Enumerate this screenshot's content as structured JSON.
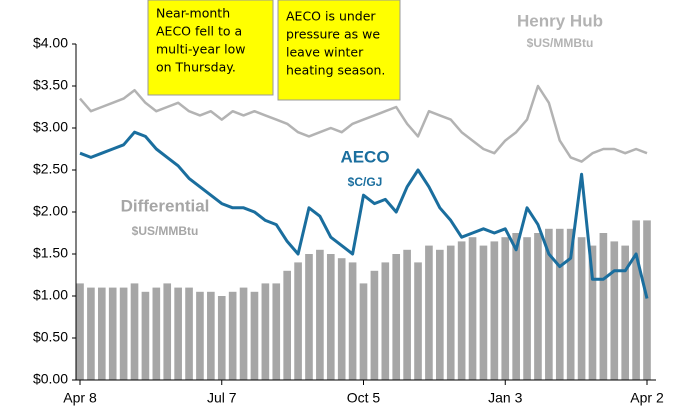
{
  "chart_data": {
    "type": "line",
    "categories": [
      "Apr 8",
      null,
      null,
      null,
      null,
      null,
      null,
      null,
      null,
      null,
      null,
      null,
      null,
      "Jul 7",
      null,
      null,
      null,
      null,
      null,
      null,
      null,
      null,
      null,
      null,
      null,
      null,
      "Oct 5",
      null,
      null,
      null,
      null,
      null,
      null,
      null,
      null,
      null,
      null,
      null,
      null,
      "Jan 3",
      null,
      null,
      null,
      null,
      null,
      null,
      null,
      null,
      null,
      null,
      null,
      null,
      "Apr 2"
    ],
    "series": [
      {
        "name": "Henry Hub",
        "unit": "$US/MMBtu",
        "type": "line",
        "color": "#b3b3b3",
        "values": [
          3.35,
          3.2,
          3.25,
          3.3,
          3.35,
          3.45,
          3.3,
          3.2,
          3.25,
          3.3,
          3.2,
          3.15,
          3.2,
          3.1,
          3.2,
          3.15,
          3.2,
          3.15,
          3.1,
          3.05,
          2.95,
          2.9,
          2.95,
          3.0,
          2.95,
          3.05,
          3.1,
          3.15,
          3.2,
          3.25,
          3.05,
          2.9,
          3.2,
          3.15,
          3.1,
          2.95,
          2.85,
          2.75,
          2.7,
          2.85,
          2.95,
          3.1,
          3.5,
          3.3,
          2.85,
          2.65,
          2.6,
          2.7,
          2.75,
          2.75,
          2.7,
          2.75,
          2.7
        ]
      },
      {
        "name": "AECO",
        "unit": "$C/GJ",
        "type": "line",
        "color": "#1a6e9e",
        "values": [
          2.7,
          2.65,
          2.7,
          2.75,
          2.8,
          2.95,
          2.9,
          2.75,
          2.65,
          2.55,
          2.4,
          2.3,
          2.2,
          2.1,
          2.05,
          2.05,
          2.0,
          1.9,
          1.85,
          1.65,
          1.5,
          2.05,
          1.95,
          1.7,
          1.6,
          1.5,
          2.2,
          2.1,
          2.15,
          2.0,
          2.3,
          2.5,
          2.3,
          2.05,
          1.9,
          1.7,
          1.75,
          1.8,
          1.75,
          1.8,
          1.55,
          2.05,
          1.85,
          1.5,
          1.35,
          1.45,
          2.45,
          1.2,
          1.2,
          1.3,
          1.3,
          1.5,
          0.97
        ]
      },
      {
        "name": "Differential",
        "unit": "$US/MMBtu",
        "type": "bar",
        "color": "#a6a6a6",
        "values": [
          1.15,
          1.1,
          1.1,
          1.1,
          1.1,
          1.15,
          1.05,
          1.1,
          1.15,
          1.1,
          1.1,
          1.05,
          1.05,
          1.0,
          1.05,
          1.1,
          1.05,
          1.15,
          1.15,
          1.3,
          1.4,
          1.5,
          1.55,
          1.5,
          1.45,
          1.4,
          1.15,
          1.3,
          1.4,
          1.5,
          1.55,
          1.4,
          1.6,
          1.55,
          1.6,
          1.65,
          1.7,
          1.6,
          1.65,
          1.7,
          1.75,
          1.7,
          1.75,
          1.8,
          1.8,
          1.8,
          1.7,
          1.6,
          1.75,
          1.65,
          1.6,
          1.9,
          1.9
        ]
      }
    ],
    "ylim": [
      0,
      4
    ],
    "yticks": [
      {
        "value": 0,
        "label": "$0.00"
      },
      {
        "value": 0.5,
        "label": "$0.50"
      },
      {
        "value": 1,
        "label": "$1.00"
      },
      {
        "value": 1.5,
        "label": "$1.50"
      },
      {
        "value": 2,
        "label": "$2.00"
      },
      {
        "value": 2.5,
        "label": "$2.50"
      },
      {
        "value": 3,
        "label": "$3.00"
      },
      {
        "value": 3.5,
        "label": "$3.50"
      },
      {
        "value": 4,
        "label": "$4.00"
      }
    ],
    "grid": false,
    "annotations": [
      {
        "lines": [
          "Near-month",
          "AECO fell to a",
          "multi-year low",
          "on Thursday."
        ]
      },
      {
        "lines": [
          "AECO is under",
          "pressure as we",
          "leave winter",
          "heating season."
        ]
      }
    ]
  }
}
